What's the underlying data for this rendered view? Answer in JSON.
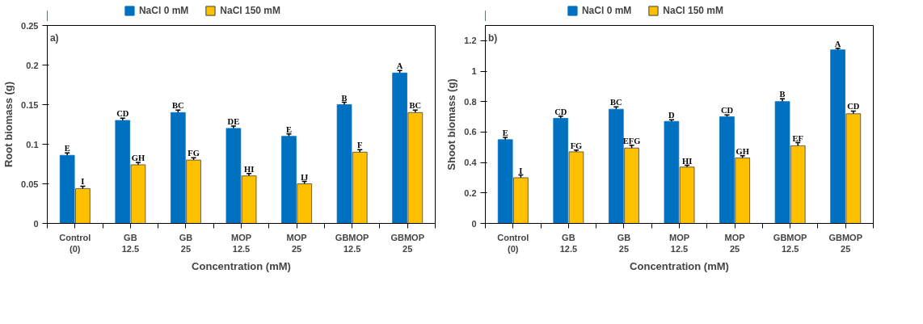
{
  "chart_data": [
    {
      "type": "bar",
      "ylabel": "Root biomass (g)",
      "xlabel": "Concentration (mM)",
      "categories": [
        "Control\n(0)",
        "GB\n12.5",
        "GB\n25",
        "MOP\n12.5",
        "MOP\n25",
        "GBMOP\n12.5",
        "GBMOP\n25"
      ],
      "series": [
        {
          "name": "NaCl 0 mM",
          "color": "#0070c0",
          "values": [
            0.086,
            0.13,
            0.14,
            0.12,
            0.11,
            0.15,
            0.19
          ],
          "errors": [
            0.003,
            0.003,
            0.003,
            0.003,
            0.003,
            0.003,
            0.003
          ]
        },
        {
          "name": "NaCl 150 mM",
          "color": "#ffc000",
          "values": [
            0.044,
            0.074,
            0.08,
            0.06,
            0.05,
            0.09,
            0.14
          ],
          "errors": [
            0.003,
            0.003,
            0.003,
            0.003,
            0.003,
            0.003,
            0.003
          ]
        }
      ],
      "ylim": [
        0,
        0.25
      ],
      "yticks": [
        0,
        0.05,
        0.1,
        0.15,
        0.2,
        0.25
      ],
      "grid": false,
      "legend": "top",
      "annotations": [
        "a)",
        {
          "text": "E",
          "x": "Control\n(0)",
          "y": 0.089
        },
        {
          "text": "I",
          "x": "Control\n(0)",
          "y": 0.047
        },
        {
          "text": "CD",
          "x": "GB\n12.5",
          "y": 0.133
        },
        {
          "text": "GH",
          "x": "GB\n12.5",
          "y": 0.077
        },
        {
          "text": "BC",
          "x": "GB\n25",
          "y": 0.143
        },
        {
          "text": "FG",
          "x": "GB\n25",
          "y": 0.083
        },
        {
          "text": "DE",
          "x": "MOP\n12.5",
          "y": 0.123
        },
        {
          "text": "HI",
          "x": "MOP\n12.5",
          "y": 0.063
        },
        {
          "text": "E",
          "x": "MOP\n25",
          "y": 0.113
        },
        {
          "text": "IJ",
          "x": "MOP\n25",
          "y": 0.053
        },
        {
          "text": "B",
          "x": "GBMOP\n12.5",
          "y": 0.153
        },
        {
          "text": "F",
          "x": "GBMOP\n12.5",
          "y": 0.093
        },
        {
          "text": "A",
          "x": "GBMOP\n25",
          "y": 0.193
        },
        {
          "text": "BC",
          "x": "GBMOP\n25",
          "y": 0.143
        }
      ]
    },
    {
      "type": "bar",
      "ylabel": "Shoot biomass (g)",
      "xlabel": "Concentration (mM)",
      "categories": [
        "Control\n(0)",
        "GB\n12.5",
        "GB\n25",
        "MOP\n12.5",
        "MOP\n25",
        "GBMOP\n12.5",
        "GBMOP\n25"
      ],
      "series": [
        {
          "name": "NaCl 0 mM",
          "color": "#0070c0",
          "values": [
            0.55,
            0.69,
            0.75,
            0.67,
            0.7,
            0.8,
            1.14
          ],
          "errors": [
            0.015,
            0.015,
            0.015,
            0.01,
            0.012,
            0.018,
            0.01
          ]
        },
        {
          "name": "NaCl 150 mM",
          "color": "#ffc000",
          "values": [
            0.3,
            0.47,
            0.495,
            0.37,
            0.43,
            0.51,
            0.72
          ],
          "errors": [
            0.018,
            0.012,
            0.018,
            0.012,
            0.015,
            0.02,
            0.018
          ]
        }
      ],
      "ylim": [
        0,
        1.3
      ],
      "yticks": [
        0,
        0.2,
        0.4,
        0.6,
        0.8,
        1,
        1.2
      ],
      "grid": false,
      "legend": "top",
      "annotations": [
        "b)",
        {
          "text": "E",
          "x": "Control\n(0)",
          "y": 0.565
        },
        {
          "text": "I",
          "x": "Control\n(0)",
          "y": 0.318
        },
        {
          "text": "CD",
          "x": "GB\n12.5",
          "y": 0.705
        },
        {
          "text": "FG",
          "x": "GB\n12.5",
          "y": 0.482
        },
        {
          "text": "BC",
          "x": "GB\n25",
          "y": 0.765
        },
        {
          "text": "EFG",
          "x": "GB\n25",
          "y": 0.513
        },
        {
          "text": "D",
          "x": "MOP\n12.5",
          "y": 0.68
        },
        {
          "text": "HI",
          "x": "MOP\n12.5",
          "y": 0.382
        },
        {
          "text": "CD",
          "x": "MOP\n25",
          "y": 0.712
        },
        {
          "text": "GH",
          "x": "MOP\n25",
          "y": 0.445
        },
        {
          "text": "B",
          "x": "GBMOP\n12.5",
          "y": 0.818
        },
        {
          "text": "EF",
          "x": "GBMOP\n12.5",
          "y": 0.53
        },
        {
          "text": "A",
          "x": "GBMOP\n25",
          "y": 1.15
        },
        {
          "text": "CD",
          "x": "GBMOP\n25",
          "y": 0.738
        }
      ]
    }
  ]
}
